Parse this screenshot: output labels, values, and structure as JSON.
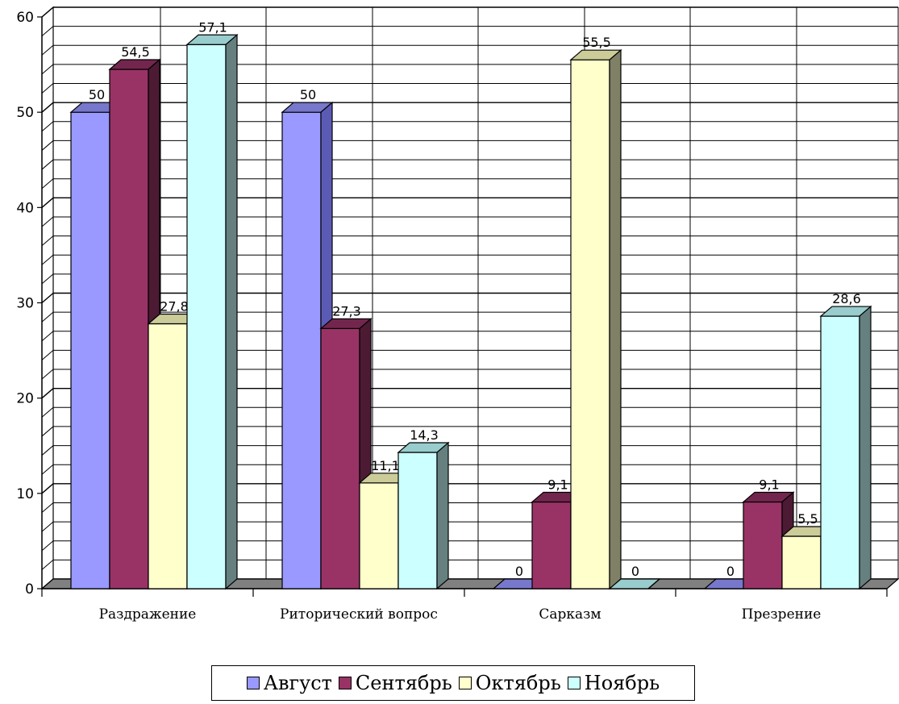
{
  "chart_data": {
    "type": "bar",
    "categories": [
      "Раздражение",
      "Риторический вопрос",
      "Сарказм",
      "Презрение"
    ],
    "series": [
      {
        "name": "Август",
        "values": [
          50,
          50,
          0,
          0
        ],
        "labels": [
          "50",
          "50",
          "0",
          "0"
        ],
        "color": "#9999ff",
        "side": "#5b5bb6",
        "top": "#7777cc"
      },
      {
        "name": "Сентябрь",
        "values": [
          54.5,
          27.3,
          9.1,
          9.1
        ],
        "labels": [
          "54,5",
          "27,3",
          "9,1",
          "9,1"
        ],
        "color": "#993366",
        "side": "#4d1a33",
        "top": "#73264d"
      },
      {
        "name": "Октябрь",
        "values": [
          27.8,
          11.1,
          55.5,
          5.5
        ],
        "labels": [
          "27,8",
          "11,1",
          "55,5",
          "5,5"
        ],
        "color": "#ffffcc",
        "side": "#808066",
        "top": "#cccc99"
      },
      {
        "name": "Ноябрь",
        "values": [
          57.1,
          14.3,
          0,
          28.6
        ],
        "labels": [
          "57,1",
          "14,3",
          "0",
          "28,6"
        ],
        "color": "#ccffff",
        "side": "#668080",
        "top": "#99cccc"
      }
    ],
    "y_ticks": [
      "0",
      "10",
      "20",
      "30",
      "40",
      "50",
      "60"
    ],
    "ylim": [
      0,
      60
    ],
    "grid": true,
    "legend_position": "bottom"
  }
}
